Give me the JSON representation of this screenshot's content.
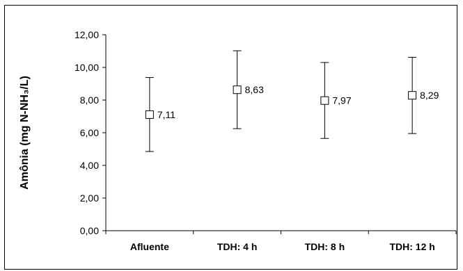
{
  "chart_data": {
    "type": "scatter",
    "categories": [
      "Afluente",
      "TDH: 4 h",
      "TDH: 8 h",
      "TDH: 12 h"
    ],
    "series": [
      {
        "values": [
          7.11,
          8.63,
          7.97,
          8.29
        ],
        "error_low": [
          4.85,
          6.25,
          5.65,
          5.95
        ],
        "error_high": [
          9.38,
          11.02,
          10.3,
          10.62
        ],
        "data_labels": [
          "7,11",
          "8,63",
          "7,97",
          "8,29"
        ],
        "marker": "open-square"
      }
    ],
    "ylabel": "Amônia (mg N-NH₃/L)",
    "xlabel": "",
    "title": "",
    "ylim": [
      0,
      12
    ],
    "yticks": [
      0,
      2,
      4,
      6,
      8,
      10,
      12
    ],
    "ytick_labels": [
      "0,00",
      "2,00",
      "4,00",
      "6,00",
      "8,00",
      "10,00",
      "12,00"
    ],
    "grid": false,
    "legend": "none"
  }
}
